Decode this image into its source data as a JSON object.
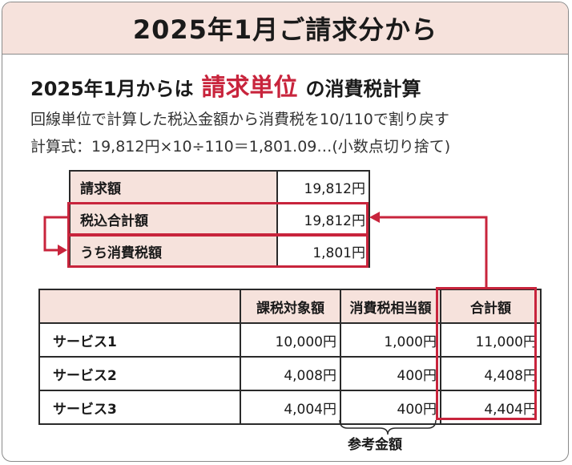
{
  "header": {
    "title": "2025年1月ご請求分から"
  },
  "subtitle": {
    "prefix": "2025年1月からは",
    "emphasis": "請求単位",
    "suffix": "の消費税計算"
  },
  "description": {
    "line1": "回線単位で計算した税込金額から消費税を10/110で割り戻す",
    "line2": "計算式：19,812円×10÷110＝1,801.09…(小数点切り捨て)"
  },
  "summary_table": {
    "rows": [
      {
        "label": "請求額",
        "value": "19,812円"
      },
      {
        "label": "税込合計額",
        "value": "19,812円"
      },
      {
        "label": "うち消費税額",
        "value": "1,801円"
      }
    ]
  },
  "service_table": {
    "headers": [
      "",
      "課税対象額",
      "消費税相当額",
      "合計額"
    ],
    "rows": [
      {
        "name": "サービス1",
        "taxable": "10,000円",
        "tax": "1,000円",
        "total": "11,000円"
      },
      {
        "name": "サービス2",
        "taxable": "4,008円",
        "tax": "400円",
        "total": "4,408円"
      },
      {
        "name": "サービス3",
        "taxable": "4,004円",
        "tax": "400円",
        "total": "4,404円"
      }
    ]
  },
  "bracket_label": "参考金額",
  "colors": {
    "accent": "#c8243c",
    "header_bg": "#f6e2dc",
    "border": "#2a2a2a"
  }
}
